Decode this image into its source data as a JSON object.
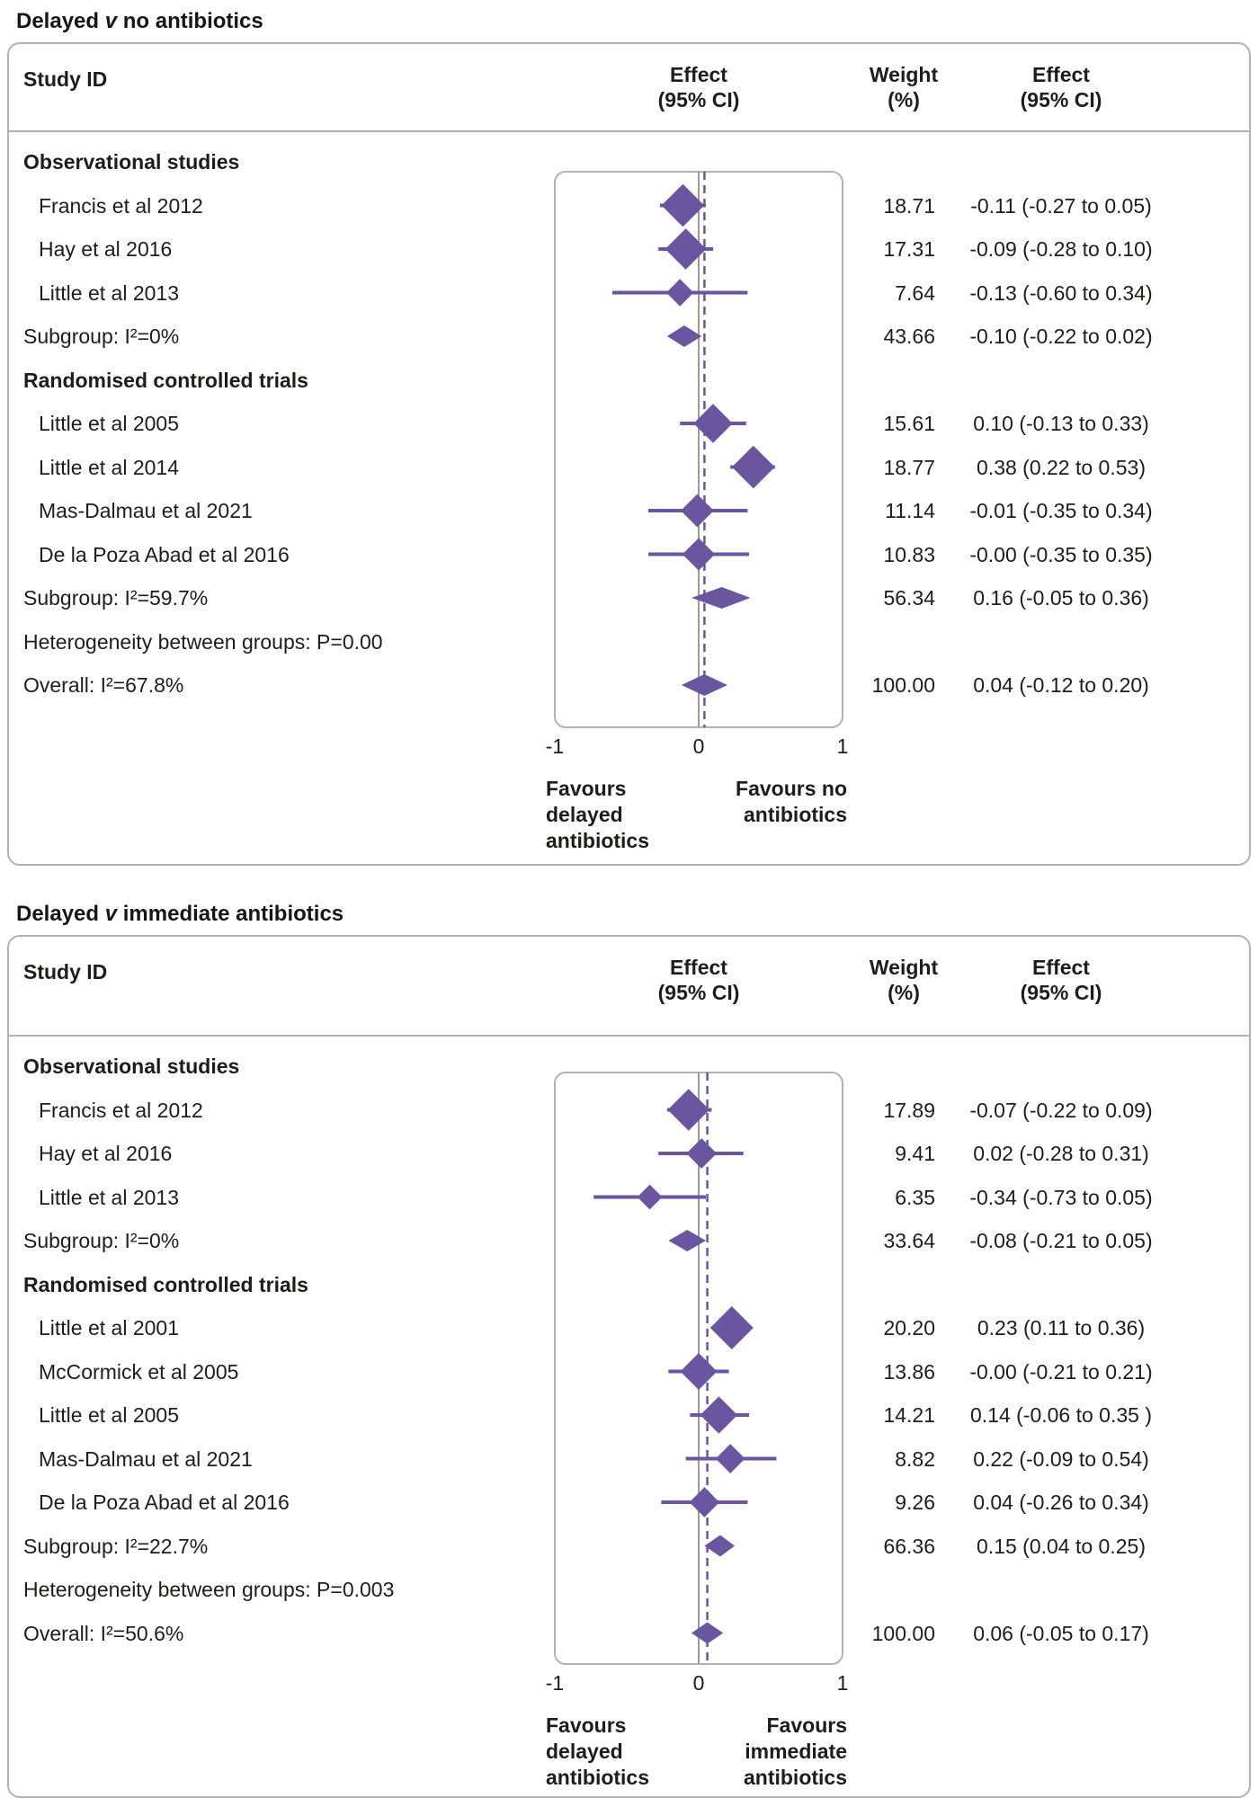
{
  "colors": {
    "purple": "#6a55a1",
    "zero_line_gray": "#9b9b9b",
    "frame_gray": "#b2b2b2",
    "text": "#1d1d1b"
  },
  "chart_data": [
    {
      "type": "forest",
      "title_parts": [
        "Delayed ",
        "v",
        " no antibiotics"
      ],
      "columns": {
        "study": "Study ID",
        "effect_plot": [
          "Effect",
          "(95% CI)"
        ],
        "weight": [
          "Weight",
          "(%)"
        ],
        "effect_text": [
          "Effect",
          "(95% CI)"
        ]
      },
      "axis": {
        "range": [
          -1,
          1
        ],
        "tick_labels": [
          "-1",
          "0",
          "1"
        ],
        "tick_values": [
          -1,
          0,
          1
        ]
      },
      "favours_left": [
        "Favours",
        "delayed",
        "antibiotics"
      ],
      "favours_right": [
        "Favours no",
        "antibiotics"
      ],
      "overall_line": 0.04,
      "rows": [
        {
          "kind": "group",
          "label": "Observational studies"
        },
        {
          "kind": "study",
          "label": "Francis et al 2012",
          "weight": 18.71,
          "weight_text": "18.71",
          "effect": -0.11,
          "ci_low": -0.27,
          "ci_high": 0.05,
          "effect_text": "-0.11 (-0.27 to 0.05)"
        },
        {
          "kind": "study",
          "label": "Hay et al 2016",
          "weight": 17.31,
          "weight_text": "17.31",
          "effect": -0.09,
          "ci_low": -0.28,
          "ci_high": 0.1,
          "effect_text": "-0.09 (-0.28 to 0.10)"
        },
        {
          "kind": "study",
          "label": "Little et al 2013",
          "weight": 7.64,
          "weight_text": "7.64",
          "effect": -0.13,
          "ci_low": -0.6,
          "ci_high": 0.34,
          "effect_text": "-0.13 (-0.60 to 0.34)"
        },
        {
          "kind": "subgroup",
          "label": "Subgroup: I²=0%",
          "weight": 43.66,
          "weight_text": "43.66",
          "effect": -0.1,
          "ci_low": -0.22,
          "ci_high": 0.02,
          "effect_text": "-0.10 (-0.22 to 0.02)"
        },
        {
          "kind": "group",
          "label": "Randomised controlled trials"
        },
        {
          "kind": "study",
          "label": "Little et al 2005",
          "weight": 15.61,
          "weight_text": "15.61",
          "effect": 0.1,
          "ci_low": -0.13,
          "ci_high": 0.33,
          "effect_text": "0.10 (-0.13 to 0.33)"
        },
        {
          "kind": "study",
          "label": "Little et al 2014",
          "weight": 18.77,
          "weight_text": "18.77",
          "effect": 0.38,
          "ci_low": 0.22,
          "ci_high": 0.53,
          "effect_text": "0.38 (0.22 to 0.53)"
        },
        {
          "kind": "study",
          "label": "Mas-Dalmau et al 2021",
          "weight": 11.14,
          "weight_text": "11.14",
          "effect": -0.01,
          "ci_low": -0.35,
          "ci_high": 0.34,
          "effect_text": "-0.01 (-0.35 to 0.34)"
        },
        {
          "kind": "study",
          "label": "De la Poza Abad et al 2016",
          "weight": 10.83,
          "weight_text": "10.83",
          "effect": -0.0,
          "ci_low": -0.35,
          "ci_high": 0.35,
          "effect_text": "-0.00 (-0.35 to 0.35)"
        },
        {
          "kind": "subgroup",
          "label": "Subgroup: I²=59.7%",
          "weight": 56.34,
          "weight_text": "56.34",
          "effect": 0.16,
          "ci_low": -0.05,
          "ci_high": 0.36,
          "effect_text": "0.16 (-0.05 to 0.36)"
        },
        {
          "kind": "note",
          "label": "Heterogeneity between groups: P=0.00"
        },
        {
          "kind": "overall",
          "label": "Overall: I²=67.8%",
          "weight": 100.0,
          "weight_text": "100.00",
          "effect": 0.04,
          "ci_low": -0.12,
          "ci_high": 0.2,
          "effect_text": "0.04 (-0.12 to 0.20)"
        }
      ]
    },
    {
      "type": "forest",
      "title_parts": [
        "Delayed ",
        "v",
        " immediate antibiotics"
      ],
      "columns": {
        "study": "Study ID",
        "effect_plot": [
          "Effect",
          "(95% CI)"
        ],
        "weight": [
          "Weight",
          "(%)"
        ],
        "effect_text": [
          "Effect",
          "(95% CI)"
        ]
      },
      "axis": {
        "range": [
          -1,
          1
        ],
        "tick_labels": [
          "-1",
          "0",
          "1"
        ],
        "tick_values": [
          -1,
          0,
          1
        ]
      },
      "favours_left": [
        "Favours",
        "delayed",
        "antibiotics"
      ],
      "favours_right": [
        "Favours",
        "immediate",
        "antibiotics"
      ],
      "overall_line": 0.06,
      "rows": [
        {
          "kind": "group",
          "label": "Observational studies"
        },
        {
          "kind": "study",
          "label": "Francis et al 2012",
          "weight": 17.89,
          "weight_text": "17.89",
          "effect": -0.07,
          "ci_low": -0.22,
          "ci_high": 0.09,
          "effect_text": "-0.07 (-0.22 to 0.09)"
        },
        {
          "kind": "study",
          "label": "Hay et al 2016",
          "weight": 9.41,
          "weight_text": "9.41",
          "effect": 0.02,
          "ci_low": -0.28,
          "ci_high": 0.31,
          "effect_text": "0.02 (-0.28 to 0.31)"
        },
        {
          "kind": "study",
          "label": "Little et al 2013",
          "weight": 6.35,
          "weight_text": "6.35",
          "effect": -0.34,
          "ci_low": -0.73,
          "ci_high": 0.05,
          "effect_text": "-0.34 (-0.73 to 0.05)"
        },
        {
          "kind": "subgroup",
          "label": "Subgroup: I²=0%",
          "weight": 33.64,
          "weight_text": "33.64",
          "effect": -0.08,
          "ci_low": -0.21,
          "ci_high": 0.05,
          "effect_text": "-0.08 (-0.21 to 0.05)"
        },
        {
          "kind": "group",
          "label": "Randomised controlled trials"
        },
        {
          "kind": "study",
          "label": "Little et al 2001",
          "weight": 20.2,
          "weight_text": "20.20",
          "effect": 0.23,
          "ci_low": 0.11,
          "ci_high": 0.36,
          "effect_text": "0.23 (0.11 to 0.36)"
        },
        {
          "kind": "study",
          "label": "McCormick et al 2005",
          "weight": 13.86,
          "weight_text": "13.86",
          "effect": -0.0,
          "ci_low": -0.21,
          "ci_high": 0.21,
          "effect_text": "-0.00 (-0.21 to 0.21)"
        },
        {
          "kind": "study",
          "label": "Little et al 2005",
          "weight": 14.21,
          "weight_text": "14.21",
          "effect": 0.14,
          "ci_low": -0.06,
          "ci_high": 0.35,
          "effect_text": "0.14 (-0.06 to 0.35 )"
        },
        {
          "kind": "study",
          "label": "Mas-Dalmau et al 2021",
          "weight": 8.82,
          "weight_text": "8.82",
          "effect": 0.22,
          "ci_low": -0.09,
          "ci_high": 0.54,
          "effect_text": "0.22 (-0.09 to 0.54)"
        },
        {
          "kind": "study",
          "label": "De la Poza Abad et al 2016",
          "weight": 9.26,
          "weight_text": "9.26",
          "effect": 0.04,
          "ci_low": -0.26,
          "ci_high": 0.34,
          "effect_text": "0.04 (-0.26 to 0.34)"
        },
        {
          "kind": "subgroup",
          "label": "Subgroup: I²=22.7%",
          "weight": 66.36,
          "weight_text": "66.36",
          "effect": 0.15,
          "ci_low": 0.04,
          "ci_high": 0.25,
          "effect_text": "0.15 (0.04 to 0.25)"
        },
        {
          "kind": "note",
          "label": "Heterogeneity between groups: P=0.003"
        },
        {
          "kind": "overall",
          "label": "Overall: I²=50.6%",
          "weight": 100.0,
          "weight_text": "100.00",
          "effect": 0.06,
          "ci_low": -0.05,
          "ci_high": 0.17,
          "effect_text": "0.06 (-0.05 to 0.17)"
        }
      ]
    }
  ]
}
